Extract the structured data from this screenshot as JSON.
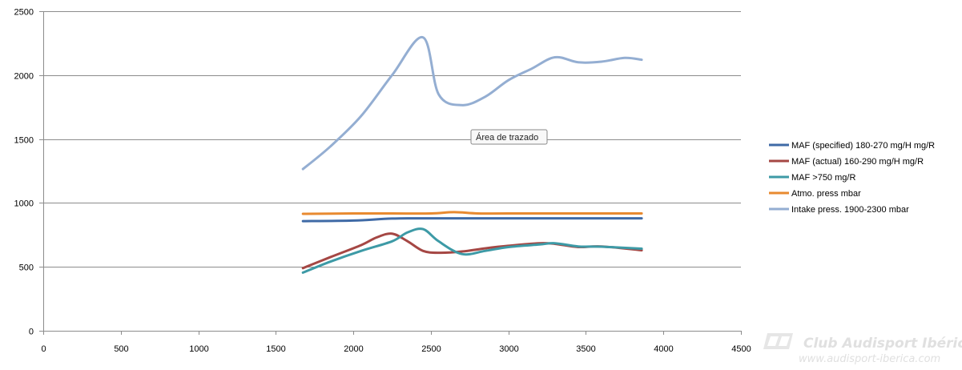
{
  "chart_data": {
    "type": "line",
    "title": "",
    "xlabel": "",
    "ylabel": "",
    "xlim": [
      0,
      4500
    ],
    "ylim": [
      0,
      2500
    ],
    "xticks": [
      0,
      500,
      1000,
      1500,
      2000,
      2500,
      3000,
      3500,
      4000,
      4500
    ],
    "yticks": [
      0,
      500,
      1000,
      1500,
      2000,
      2500
    ],
    "grid": "horizontal",
    "legend_position": "right",
    "series": [
      {
        "name": "MAF (specified) 180-270 mg/H  mg/R",
        "color": "#3f6aa6",
        "x": [
          1675,
          2000,
          2250,
          2500,
          3000,
          3500,
          3860
        ],
        "y": [
          858,
          862,
          878,
          880,
          880,
          880,
          880
        ]
      },
      {
        "name": "MAF (actual) 160-290 mg/H  mg/R",
        "color": "#a54744",
        "x": [
          1675,
          1850,
          2050,
          2150,
          2250,
          2350,
          2450,
          2550,
          2700,
          2850,
          3000,
          3200,
          3300,
          3450,
          3600,
          3860
        ],
        "y": [
          490,
          575,
          670,
          730,
          760,
          700,
          625,
          610,
          620,
          645,
          665,
          685,
          680,
          655,
          660,
          630
        ]
      },
      {
        "name": "MAF >750  mg/R",
        "color": "#3d9aa6",
        "x": [
          1675,
          1850,
          2050,
          2250,
          2350,
          2450,
          2550,
          2700,
          2850,
          3000,
          3200,
          3300,
          3450,
          3600,
          3860
        ],
        "y": [
          455,
          540,
          625,
          700,
          770,
          795,
          700,
          600,
          625,
          655,
          675,
          685,
          660,
          658,
          642
        ]
      },
      {
        "name": "Atmo. press  mbar",
        "color": "#e88a30",
        "x": [
          1675,
          2000,
          2250,
          2500,
          2650,
          2800,
          3000,
          3500,
          3860
        ],
        "y": [
          915,
          918,
          918,
          918,
          928,
          918,
          918,
          918,
          918
        ]
      },
      {
        "name": "Intake press. 1900-2300  mbar",
        "color": "#94aed2",
        "x": [
          1675,
          1850,
          2050,
          2250,
          2450,
          2550,
          2700,
          2850,
          3000,
          3150,
          3300,
          3450,
          3600,
          3750,
          3860
        ],
        "y": [
          1265,
          1440,
          1680,
          2000,
          2295,
          1850,
          1765,
          1830,
          1960,
          2050,
          2140,
          2100,
          2105,
          2135,
          2120
        ]
      }
    ],
    "annotations": [
      "Área de trazado"
    ]
  },
  "watermark": {
    "title": "Club Audisport Ibérica",
    "url": "www.audisport-iberica.com"
  }
}
